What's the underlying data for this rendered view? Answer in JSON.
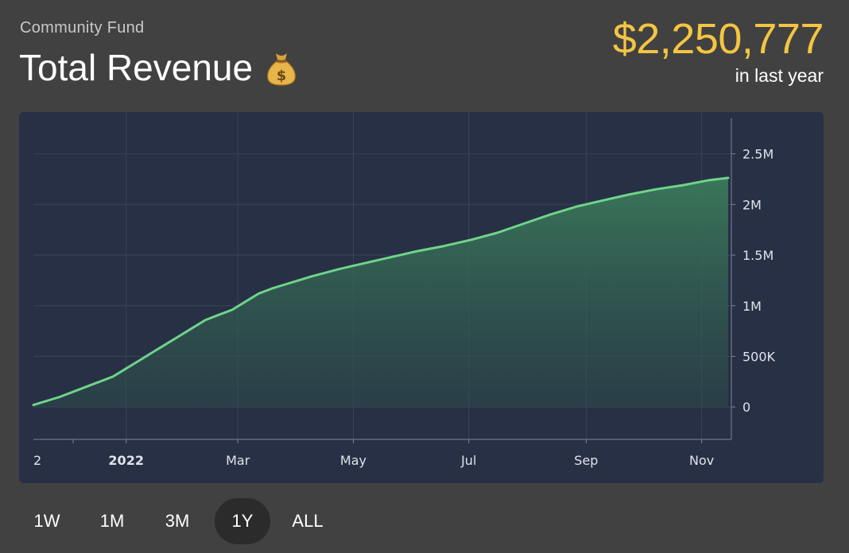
{
  "header": {
    "subtitle": "Community Fund",
    "title": "Total Revenue",
    "title_icon": "money-bag-icon",
    "total_value": "$2,250,777",
    "period_label": "in last year"
  },
  "colors": {
    "background": "#414141",
    "panel": "#273045",
    "accent_gold": "#f4c542",
    "line": "#6fd38a",
    "grid": "#3a445a"
  },
  "range_buttons": [
    {
      "label": "1W",
      "active": false
    },
    {
      "label": "1M",
      "active": false
    },
    {
      "label": "3M",
      "active": false
    },
    {
      "label": "1Y",
      "active": true
    },
    {
      "label": "ALL",
      "active": false
    }
  ],
  "chart_data": {
    "type": "area",
    "x_tick_labels": [
      "2",
      "2022",
      "Mar",
      "May",
      "Jul",
      "Sep",
      "Nov"
    ],
    "x_tick_bold": [
      false,
      true,
      false,
      false,
      false,
      false,
      false
    ],
    "x_tick_days": [
      -28,
      0,
      59,
      120,
      181,
      243,
      304
    ],
    "y_ticks": [
      0,
      500000,
      1000000,
      1500000,
      2000000,
      2500000
    ],
    "y_tick_labels": [
      "0",
      "500K",
      "1M",
      "1.5M",
      "2M",
      "2.5M"
    ],
    "x_range_days": [
      -49,
      318
    ],
    "ylim": [
      -320000,
      2850000
    ],
    "grid": true,
    "series": [
      {
        "x_days": [
          -49,
          -35,
          -21,
          -7,
          0,
          7,
          14,
          21,
          28,
          35,
          42,
          49,
          56,
          63,
          70,
          77,
          84,
          91,
          98,
          105,
          112,
          126,
          140,
          154,
          168,
          182,
          196,
          210,
          224,
          238,
          252,
          266,
          280,
          294,
          308,
          318
        ],
        "values": [
          20000,
          100000,
          200000,
          300000,
          380000,
          460000,
          540000,
          620000,
          700000,
          780000,
          860000,
          910000,
          960000,
          1040000,
          1120000,
          1170000,
          1210000,
          1250000,
          1290000,
          1325000,
          1360000,
          1420000,
          1480000,
          1540000,
          1590000,
          1650000,
          1720000,
          1810000,
          1900000,
          1980000,
          2040000,
          2100000,
          2150000,
          2190000,
          2240000,
          2262000
        ]
      }
    ]
  }
}
